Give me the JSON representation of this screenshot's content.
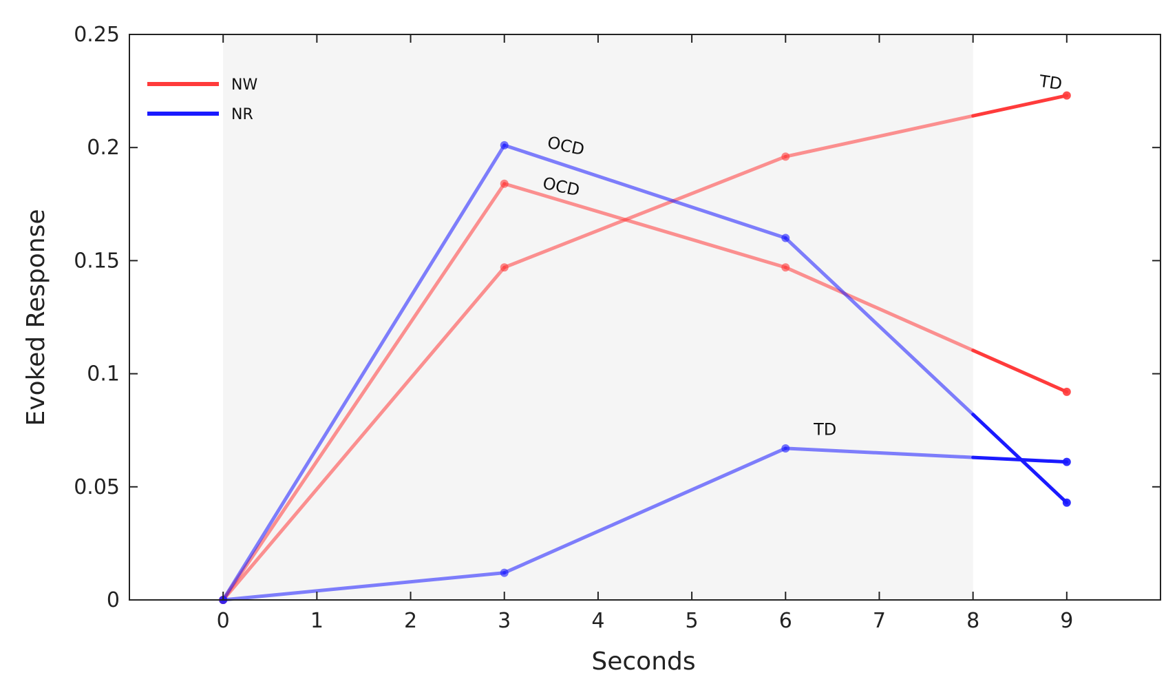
{
  "chart_data": {
    "type": "line",
    "xlabel": "Seconds",
    "ylabel": "Evoked Response",
    "xlim": [
      -1,
      10
    ],
    "ylim": [
      0,
      0.25
    ],
    "x_ticks": [
      0,
      1,
      2,
      3,
      4,
      5,
      6,
      7,
      8,
      9
    ],
    "y_ticks": [
      0,
      0.05,
      0.1,
      0.15,
      0.2,
      0.25
    ],
    "y_tick_labels": [
      "0",
      "0.05",
      "0.1",
      "0.15",
      "0.2",
      "0.25"
    ],
    "shaded_region_x": [
      0,
      8
    ],
    "legend": {
      "placement": "top-left",
      "entries": [
        {
          "label": "NW",
          "color": "#ff3b3b"
        },
        {
          "label": "NR",
          "color": "#1a1aff"
        }
      ]
    },
    "series": [
      {
        "legend": "NW",
        "label": "TD",
        "color": "#ff3b3b",
        "x": [
          0,
          3,
          6,
          9
        ],
        "y": [
          0,
          0.147,
          0.196,
          0.223
        ]
      },
      {
        "legend": "NW",
        "label": "OCD",
        "color": "#ff3b3b",
        "x": [
          0,
          3,
          6,
          9
        ],
        "y": [
          0,
          0.184,
          0.147,
          0.092
        ]
      },
      {
        "legend": "NR",
        "label": "OCD",
        "color": "#1a1aff",
        "x": [
          0,
          3,
          6,
          9
        ],
        "y": [
          0,
          0.201,
          0.16,
          0.043
        ]
      },
      {
        "legend": "NR",
        "label": "TD",
        "color": "#1a1aff",
        "x": [
          0,
          3,
          6,
          9
        ],
        "y": [
          0,
          0.012,
          0.067,
          0.061
        ]
      }
    ],
    "annotations": [
      {
        "text": "TD",
        "x": 8.7,
        "y": 0.227,
        "rotate": 8
      },
      {
        "text": "OCD",
        "x": 3.45,
        "y": 0.2,
        "rotate": 12
      },
      {
        "text": "OCD",
        "x": 3.4,
        "y": 0.182,
        "rotate": 12
      },
      {
        "text": "TD",
        "x": 6.3,
        "y": 0.073,
        "rotate": 0
      }
    ]
  },
  "colors": {
    "shade": "#f5f5f5",
    "axis": "#222222"
  }
}
